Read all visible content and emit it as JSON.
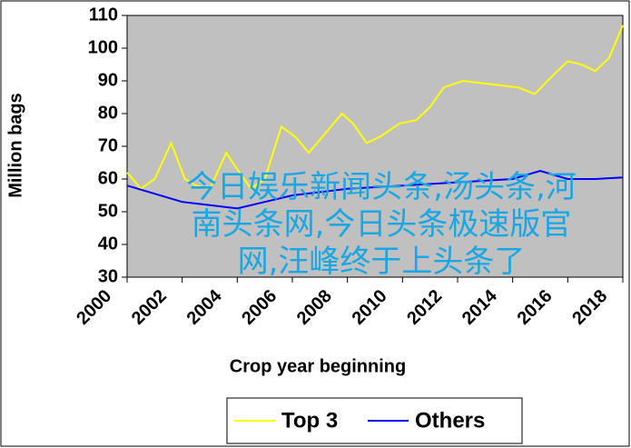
{
  "chart_data": {
    "type": "line",
    "x_label": "Crop year beginning",
    "y_label": "Million bags",
    "xlim": [
      2000,
      2018
    ],
    "xticks": [
      2000,
      2002,
      2004,
      2006,
      2008,
      2010,
      2012,
      2014,
      2016,
      2018
    ],
    "ylim": [
      30,
      110
    ],
    "yticks": [
      30,
      40,
      50,
      60,
      70,
      80,
      90,
      100,
      110
    ],
    "background": "#c0c0c0",
    "series": [
      {
        "name": "Top 3",
        "color": "#ffff00",
        "x": [
          2000,
          2000.5,
          2001,
          2001.6,
          2002.1,
          2002.5,
          2003,
          2003.6,
          2004,
          2004.5,
          2005,
          2005.6,
          2006.1,
          2006.6,
          2007.3,
          2007.8,
          2008.2,
          2008.7,
          2009.2,
          2009.9,
          2010.5,
          2011,
          2011.5,
          2012.2,
          2013.2,
          2014.2,
          2014.8,
          2015.5,
          2016,
          2016.5,
          2017,
          2017.5,
          2018
        ],
        "values": [
          62,
          57,
          60,
          71,
          60,
          58,
          57,
          68,
          63,
          57,
          60,
          76,
          73,
          68,
          75,
          80,
          77,
          71,
          73,
          77,
          78,
          82,
          88,
          90,
          89,
          88,
          86,
          92,
          96,
          95,
          93,
          97,
          107
        ]
      },
      {
        "name": "Others",
        "color": "#0000ff",
        "x": [
          2000,
          2002,
          2003,
          2004,
          2005,
          2006,
          2008,
          2010,
          2012,
          2014,
          2015,
          2016,
          2017,
          2018
        ],
        "values": [
          58,
          53,
          52,
          51,
          53,
          55,
          57,
          58,
          59,
          60,
          62.5,
          60,
          60,
          60.5
        ]
      }
    ]
  },
  "overlay": {
    "text": "今日娱乐新闻头条,汤头条,河南头条网,今日头条极速版官网,汪峰终于上头条了"
  }
}
